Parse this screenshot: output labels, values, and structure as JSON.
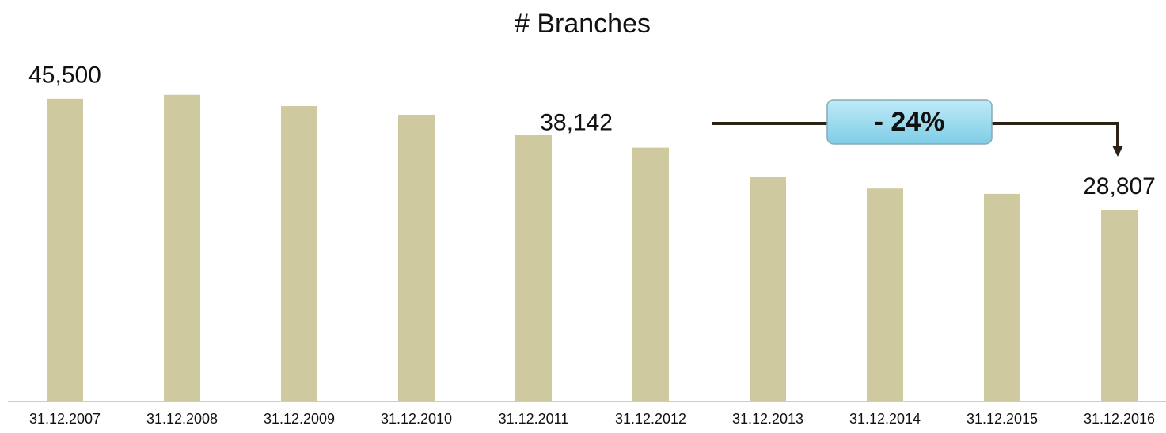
{
  "chart_data": {
    "type": "bar",
    "title": "# Branches",
    "categories": [
      "31.12.2007",
      "31.12.2008",
      "31.12.2009",
      "31.12.2010",
      "31.12.2011",
      "31.12.2012",
      "31.12.2013",
      "31.12.2014",
      "31.12.2015",
      "31.12.2016"
    ],
    "values": [
      45500,
      46100,
      44400,
      43100,
      40100,
      38142,
      33700,
      32000,
      31200,
      28807
    ],
    "value_labels": [
      "45,500",
      null,
      null,
      null,
      null,
      "38,142",
      null,
      null,
      null,
      "28,807"
    ],
    "color": "#cfc9a0",
    "ylim": [
      0,
      50000
    ],
    "annotation": "- 24%"
  }
}
